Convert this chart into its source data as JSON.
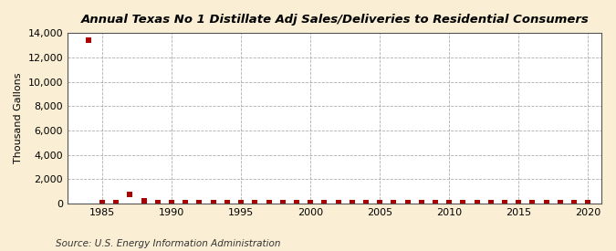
{
  "title": "Annual Texas No 1 Distillate Adj Sales/Deliveries to Residential Consumers",
  "ylabel": "Thousand Gallons",
  "source": "Source: U.S. Energy Information Administration",
  "background_color": "#faefd4",
  "plot_background_color": "#ffffff",
  "marker_color": "#aa0000",
  "marker": "s",
  "marker_size": 4,
  "xlim": [
    1982.5,
    2021
  ],
  "ylim": [
    0,
    14000
  ],
  "yticks": [
    0,
    2000,
    4000,
    6000,
    8000,
    10000,
    12000,
    14000
  ],
  "xticks": [
    1985,
    1990,
    1995,
    2000,
    2005,
    2010,
    2015,
    2020
  ],
  "years": [
    1984,
    1985,
    1986,
    1987,
    1988,
    1989,
    1990,
    1991,
    1992,
    1993,
    1994,
    1995,
    1996,
    1997,
    1998,
    1999,
    2000,
    2001,
    2002,
    2003,
    2004,
    2005,
    2006,
    2007,
    2008,
    2009,
    2010,
    2011,
    2012,
    2013,
    2014,
    2015,
    2016,
    2017,
    2018,
    2019,
    2020
  ],
  "values": [
    13400,
    55,
    55,
    750,
    200,
    100,
    100,
    90,
    90,
    90,
    80,
    90,
    90,
    85,
    80,
    75,
    70,
    75,
    75,
    75,
    80,
    75,
    70,
    70,
    70,
    65,
    65,
    65,
    60,
    60,
    60,
    55,
    55,
    55,
    55,
    55,
    55
  ]
}
